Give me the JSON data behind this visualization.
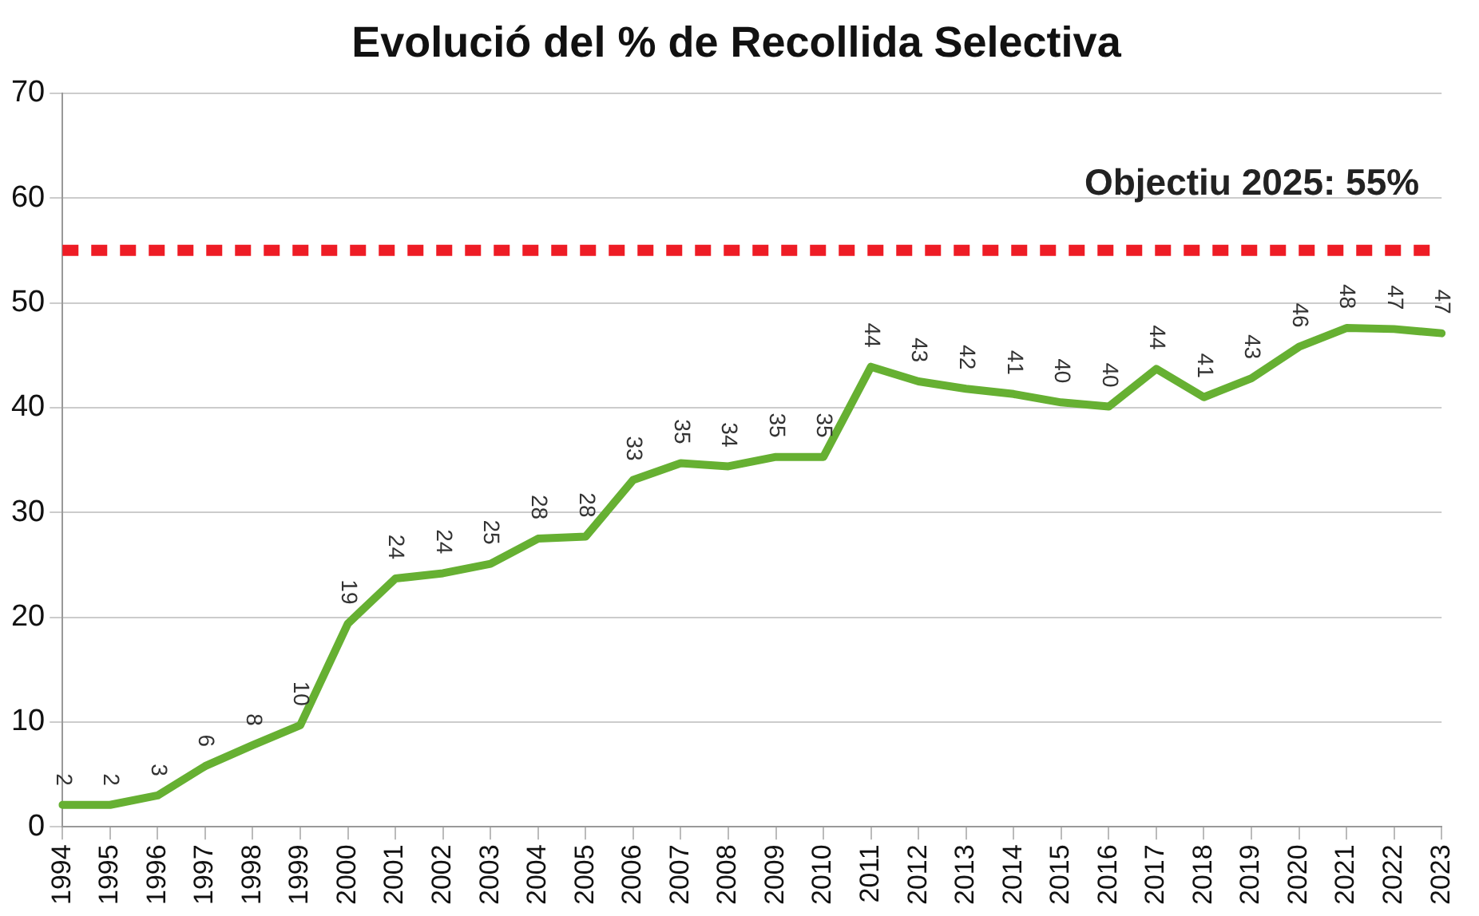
{
  "chart_data": {
    "type": "line",
    "title": "Evolució del % de Recollida Selectiva",
    "categories": [
      "1994",
      "1995",
      "1996",
      "1997",
      "1998",
      "1999",
      "2000",
      "2001",
      "2002",
      "2003",
      "2004",
      "2005",
      "2006",
      "2007",
      "2008",
      "2009",
      "2010",
      "2011",
      "2012",
      "2013",
      "2014",
      "2015",
      "2016",
      "2017",
      "2018",
      "2019",
      "2020",
      "2021",
      "2022",
      "2023"
    ],
    "series": [
      {
        "color": "#66b032",
        "values": [
          2.1,
          2.1,
          3.0,
          5.8,
          7.8,
          9.7,
          19.4,
          23.7,
          24.2,
          25.1,
          27.5,
          27.7,
          33.1,
          34.7,
          34.4,
          35.3,
          35.3,
          43.9,
          42.5,
          41.8,
          41.3,
          40.5,
          40.1,
          43.7,
          41.0,
          42.8,
          45.8,
          47.6,
          47.5,
          47.1
        ],
        "value_labels": [
          "2",
          "2",
          "3",
          "6",
          "8",
          "10",
          "19",
          "24",
          "24",
          "25",
          "28",
          "28",
          "33",
          "35",
          "34",
          "35",
          "35",
          "44",
          "43",
          "42",
          "41",
          "40",
          "40",
          "44",
          "41",
          "43",
          "46",
          "48",
          "47",
          "47"
        ]
      }
    ],
    "ylim": [
      0,
      70
    ],
    "yticks": [
      0,
      10,
      20,
      30,
      40,
      50,
      60,
      70
    ],
    "grid": "y",
    "marker": "none",
    "line_style": "solid",
    "legend": false,
    "ref_lines": [
      {
        "axis": "y",
        "value": 55,
        "label": "Objectiu 2025: 55%",
        "color": "#ee1c25",
        "line_style": "dashed"
      }
    ]
  }
}
